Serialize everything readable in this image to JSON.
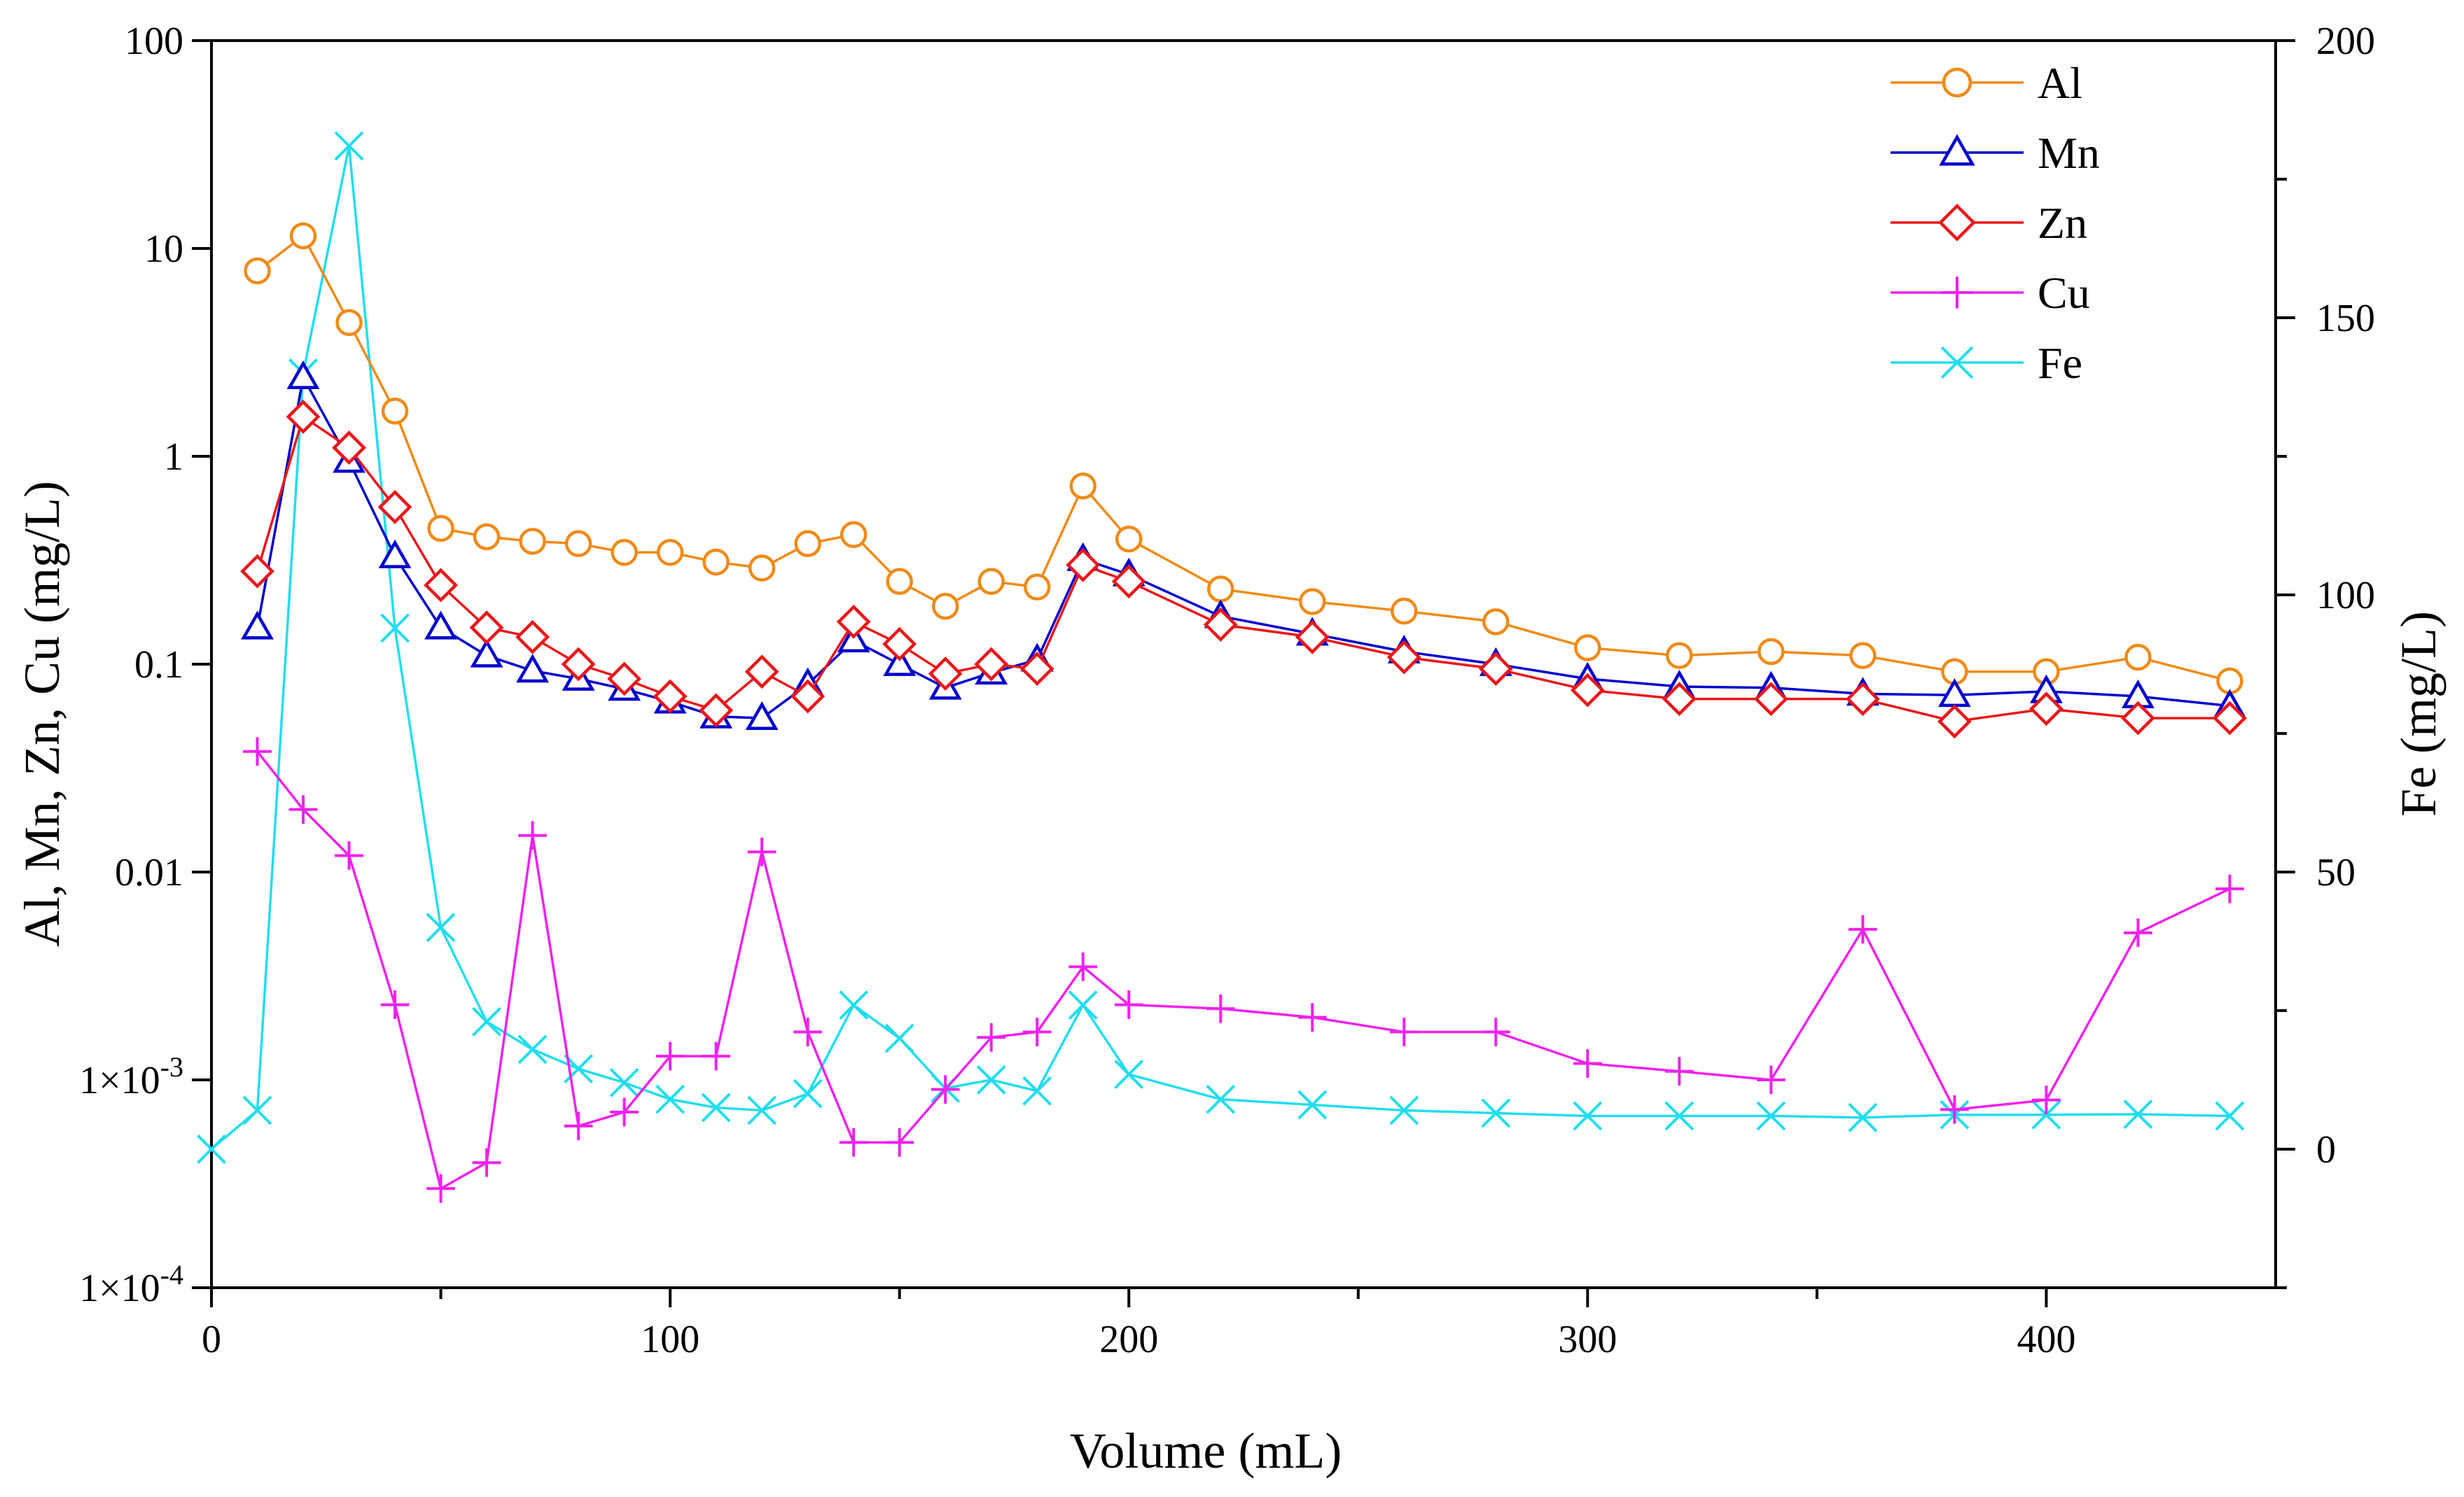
{
  "chart_data": {
    "type": "line",
    "xlabel": "Volume (mL)",
    "ylabel": "Al, Mn, Zn, Cu (mg/L)",
    "y2label": "Fe (mg/L)",
    "xlim": [
      0,
      450
    ],
    "ylim": [
      0.0001,
      100
    ],
    "yscale": "log",
    "y2lim": [
      -25,
      200
    ],
    "x_ticks": [
      0,
      100,
      200,
      300,
      400
    ],
    "y_ticks": [
      {
        "value": 100,
        "label": "100"
      },
      {
        "value": 10,
        "label": "10"
      },
      {
        "value": 1,
        "label": "1"
      },
      {
        "value": 0.1,
        "label": "0.1"
      },
      {
        "value": 0.01,
        "label": "0.01"
      },
      {
        "value": 0.001,
        "label": "1×10",
        "exp": "-3"
      },
      {
        "value": 0.0001,
        "label": "1×10",
        "exp": "-4"
      }
    ],
    "y2_ticks": [
      0,
      50,
      100,
      150,
      200
    ],
    "grid": false,
    "legend_position": "top-right",
    "series": [
      {
        "name": "Al",
        "axis": "left",
        "color": "#F08A16",
        "marker": "circle",
        "x": [
          10,
          20,
          30,
          40,
          50,
          60,
          70,
          80,
          90,
          100,
          110,
          120,
          130,
          140,
          150,
          160,
          170,
          180,
          190,
          200,
          220,
          240,
          260,
          280,
          300,
          320,
          340,
          360,
          380,
          400,
          420,
          440
        ],
        "y": [
          7.8,
          11.5,
          4.4,
          1.65,
          0.45,
          0.41,
          0.39,
          0.38,
          0.345,
          0.345,
          0.31,
          0.29,
          0.38,
          0.42,
          0.25,
          0.19,
          0.25,
          0.235,
          0.72,
          0.4,
          0.23,
          0.2,
          0.18,
          0.16,
          0.12,
          0.11,
          0.115,
          0.11,
          0.092,
          0.092,
          0.108,
          0.083
        ]
      },
      {
        "name": "Mn",
        "axis": "left",
        "color": "#0000CC",
        "marker": "triangle",
        "x": [
          10,
          20,
          30,
          40,
          50,
          60,
          70,
          80,
          90,
          100,
          110,
          120,
          130,
          140,
          150,
          160,
          170,
          180,
          190,
          200,
          220,
          240,
          260,
          280,
          300,
          320,
          340,
          360,
          380,
          400,
          420,
          440
        ],
        "y": [
          0.15,
          2.4,
          0.95,
          0.33,
          0.15,
          0.11,
          0.093,
          0.085,
          0.076,
          0.066,
          0.056,
          0.055,
          0.08,
          0.13,
          0.1,
          0.077,
          0.091,
          0.105,
          0.32,
          0.27,
          0.17,
          0.14,
          0.115,
          0.1,
          0.085,
          0.078,
          0.077,
          0.072,
          0.071,
          0.074,
          0.07,
          0.063
        ]
      },
      {
        "name": "Zn",
        "axis": "left",
        "color": "#E8171B",
        "marker": "diamond",
        "x": [
          10,
          20,
          30,
          40,
          50,
          60,
          70,
          80,
          90,
          100,
          110,
          120,
          130,
          140,
          150,
          160,
          170,
          180,
          190,
          200,
          220,
          240,
          260,
          280,
          300,
          320,
          340,
          360,
          380,
          400,
          420,
          440
        ],
        "y": [
          0.28,
          1.55,
          1.1,
          0.57,
          0.24,
          0.15,
          0.135,
          0.1,
          0.085,
          0.07,
          0.06,
          0.092,
          0.07,
          0.16,
          0.125,
          0.09,
          0.1,
          0.095,
          0.3,
          0.25,
          0.155,
          0.135,
          0.108,
          0.095,
          0.075,
          0.068,
          0.068,
          0.068,
          0.053,
          0.061,
          0.055,
          0.055
        ]
      },
      {
        "name": "Cu",
        "axis": "left",
        "color": "#EE22EE",
        "marker": "plus",
        "x": [
          10,
          20,
          30,
          40,
          50,
          60,
          70,
          80,
          90,
          100,
          110,
          120,
          130,
          140,
          150,
          160,
          170,
          180,
          190,
          200,
          220,
          240,
          260,
          280,
          300,
          320,
          340,
          360,
          380,
          400,
          420,
          440
        ],
        "y": [
          0.038,
          0.02,
          0.012,
          0.0023,
          0.0003,
          0.0004,
          0.015,
          0.0006,
          0.0007,
          0.0013,
          0.0013,
          0.0125,
          0.0017,
          0.0005,
          0.0005,
          0.0009,
          0.0016,
          0.0017,
          0.0035,
          0.0023,
          0.0022,
          0.002,
          0.0017,
          0.0017,
          0.0012,
          0.0011,
          0.001,
          0.0053,
          0.00072,
          0.0008,
          0.0051,
          0.0083
        ]
      },
      {
        "name": "Fe",
        "axis": "right",
        "color": "#22DDEE",
        "marker": "x",
        "x": [
          0,
          10,
          20,
          30,
          40,
          50,
          60,
          70,
          80,
          90,
          100,
          110,
          120,
          130,
          140,
          150,
          160,
          170,
          180,
          190,
          200,
          220,
          240,
          260,
          280,
          300,
          320,
          340,
          360,
          380,
          400,
          420,
          440
        ],
        "y": [
          0,
          7,
          140,
          181,
          94,
          40,
          23,
          18,
          14.5,
          12,
          9,
          7.5,
          7,
          10,
          26,
          20,
          11,
          12.5,
          10.5,
          26,
          13.5,
          9,
          8,
          7,
          6.5,
          6,
          6,
          6,
          5.7,
          6.2,
          6.2,
          6.3,
          6
        ]
      }
    ]
  }
}
